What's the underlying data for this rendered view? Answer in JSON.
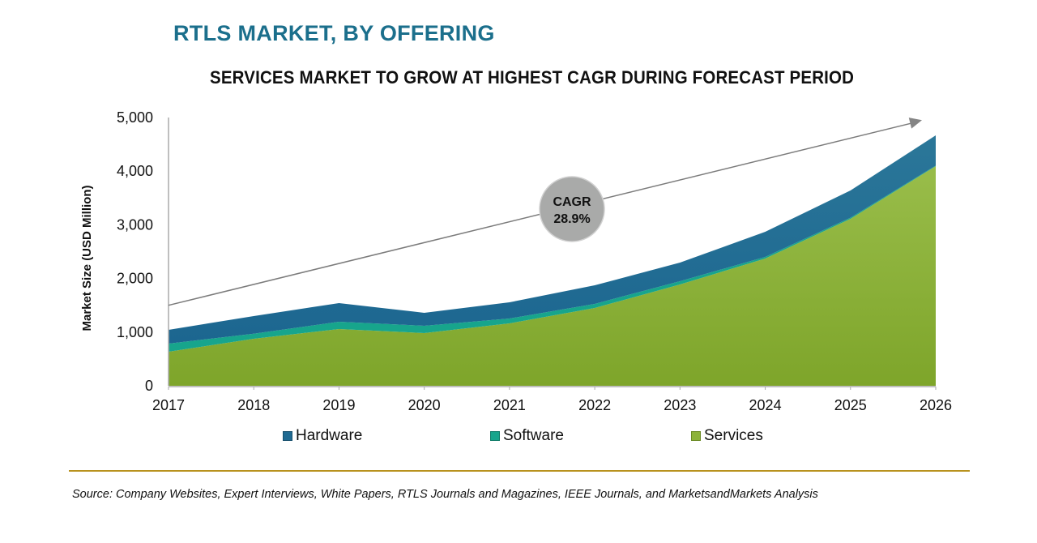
{
  "header": {
    "title": "RTLS MARKET, BY OFFERING",
    "subtitle": "SERVICES MARKET TO GROW AT HIGHEST CAGR DURING FORECAST PERIOD"
  },
  "annotation": {
    "cagr_label": "CAGR",
    "cagr_value": "28.9%"
  },
  "colors": {
    "hardware": "#1f6a92",
    "software": "#17a58c",
    "services": "#8db33a",
    "title": "#1b6f8c",
    "bubble": "#a9aaa9",
    "rule": "#b8921e"
  },
  "legend": [
    {
      "key": "hardware",
      "label": "Hardware"
    },
    {
      "key": "software",
      "label": "Software"
    },
    {
      "key": "services",
      "label": "Services"
    }
  ],
  "footer": {
    "source": "Source: Company Websites, Expert Interviews, White Papers, RTLS Journals and Magazines, IEEE Journals, and MarketsandMarkets Analysis"
  },
  "chart_data": {
    "type": "area",
    "stacked": true,
    "title": "RTLS MARKET, BY OFFERING",
    "subtitle": "SERVICES MARKET TO GROW AT HIGHEST CAGR DURING FORECAST PERIOD",
    "xlabel": "",
    "ylabel": "Market Size (USD Million)",
    "ylim": [
      0,
      5000
    ],
    "yticks": [
      0,
      1000,
      2000,
      3000,
      4000,
      5000
    ],
    "ytick_labels": [
      "0",
      "1,000",
      "2,000",
      "3,000",
      "4,000",
      "5,000"
    ],
    "categories": [
      "2017",
      "2018",
      "2019",
      "2020",
      "2021",
      "2022",
      "2023",
      "2024",
      "2025",
      "2026"
    ],
    "series": [
      {
        "name": "Services",
        "values": [
          634,
          876,
          1057,
          982,
          1163,
          1450,
          1888,
          2372,
          3112,
          4094
        ]
      },
      {
        "name": "Software",
        "values": [
          151,
          95,
          136,
          136,
          91,
          76,
          61,
          30,
          20,
          10
        ]
      },
      {
        "name": "Hardware",
        "values": [
          257,
          329,
          348,
          242,
          302,
          347,
          347,
          468,
          508,
          564
        ]
      }
    ],
    "legend_position": "bottom",
    "grid": false,
    "annotations": [
      {
        "type": "trend-arrow",
        "from": {
          "x": "2017",
          "y": 1500
        },
        "to": {
          "x": "2026",
          "y": 4950
        }
      },
      {
        "type": "bubble",
        "text": "CAGR 28.9%"
      }
    ]
  }
}
